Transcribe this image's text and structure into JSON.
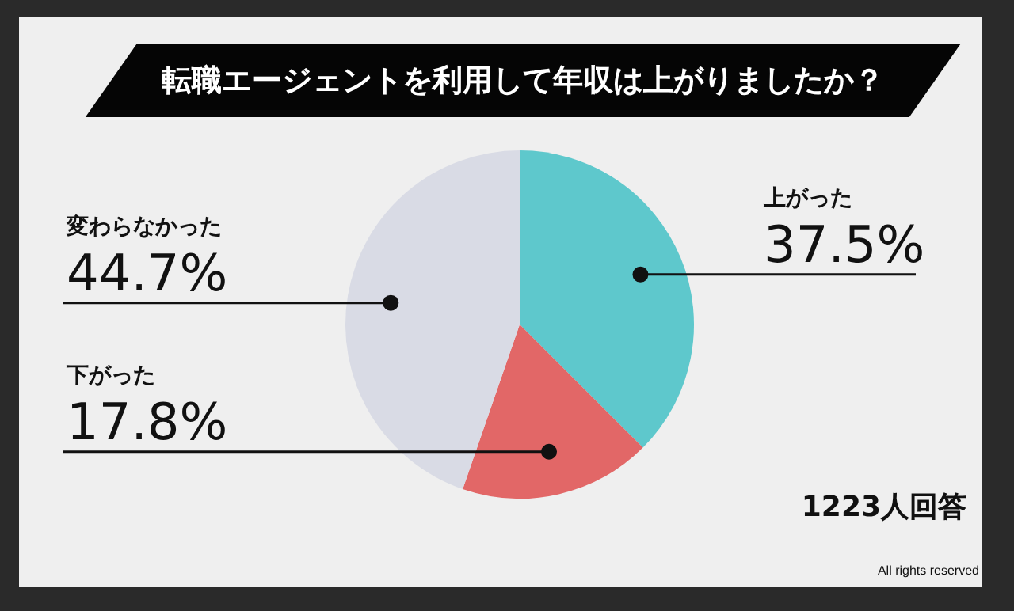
{
  "chart_data": {
    "type": "pie",
    "title": "転職エージェントを利用して年収は上がりましたか？",
    "categories": [
      "上がった",
      "下がった",
      "変わらなかった"
    ],
    "values": [
      37.5,
      17.8,
      44.7
    ],
    "colors": [
      "#5ec8cc",
      "#e26767",
      "#d9dbe5"
    ],
    "value_labels": [
      "37.5%",
      "17.8%",
      "44.7%"
    ],
    "legend": false,
    "annotations": [
      "1223人回答",
      "All rights reserved"
    ]
  }
}
